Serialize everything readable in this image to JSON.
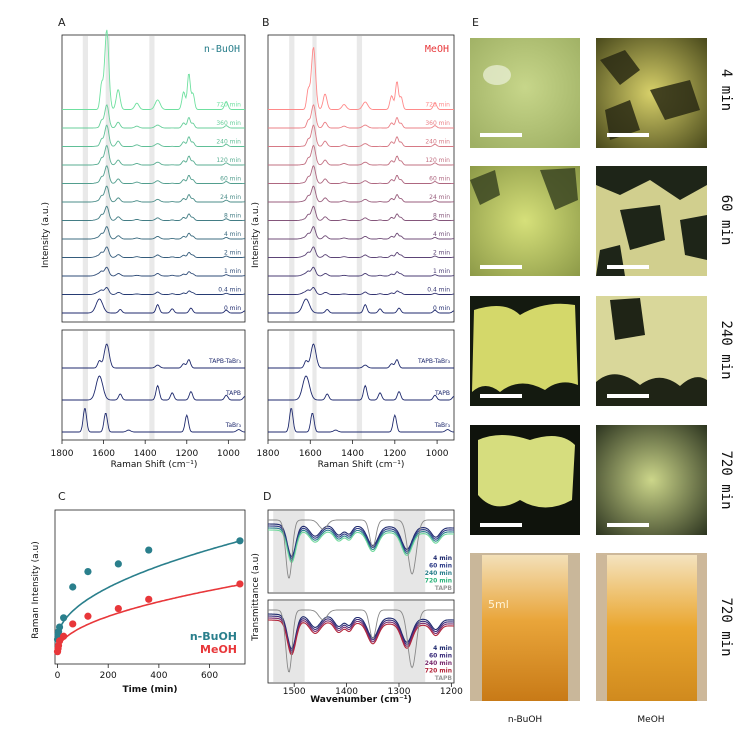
{
  "panels": {
    "a": "A",
    "b": "B",
    "c": "C",
    "d": "D",
    "e": "E"
  },
  "colors": {
    "nbuoh": "#2a7f8c",
    "meoh": "#e8373a",
    "ref": "#1f2a6e",
    "shade": "#e6e6e6"
  },
  "raman": {
    "xlabel": "Raman Shift (cm⁻¹)",
    "ylabel": "Intensity (a.u.)",
    "ticks": [
      "1800",
      "1600",
      "1400",
      "1200",
      "1000"
    ],
    "times": [
      "720 min",
      "360 min",
      "240 min",
      "120 min",
      "60 min",
      "24 min",
      "8 min",
      "4 min",
      "2 min",
      "1 min",
      "0.4 min",
      "0 min"
    ],
    "refs": [
      "TAPB-TaBr₃",
      "TAPB",
      "TaBr₃"
    ],
    "a_title": "n-BuOH",
    "b_title": "MeOH"
  },
  "chart_data": [
    {
      "type": "scatter",
      "panel": "C",
      "xlabel": "Time (min)",
      "ylabel": "Raman Intensity (a.u)",
      "xticks": [
        "0",
        "200",
        "400",
        "600"
      ],
      "xlim": [
        -10,
        740
      ],
      "series": [
        {
          "name": "n-BuOH",
          "x": [
            0,
            2,
            4,
            8,
            24,
            60,
            120,
            240,
            360,
            720
          ],
          "y": [
            0.16,
            0.19,
            0.21,
            0.24,
            0.3,
            0.5,
            0.6,
            0.65,
            0.74,
            0.8
          ]
        },
        {
          "name": "MeOH",
          "x": [
            0,
            2,
            4,
            8,
            24,
            60,
            120,
            240,
            360,
            720
          ],
          "y": [
            0.08,
            0.1,
            0.12,
            0.15,
            0.18,
            0.26,
            0.31,
            0.36,
            0.42,
            0.52
          ]
        }
      ]
    },
    {
      "type": "line",
      "panel": "D",
      "xlabel": "Wavenumber (cm⁻¹)",
      "ylabel": "Transmittance (a.u)",
      "xticks": [
        "1500",
        "1400",
        "1300",
        "1200"
      ],
      "top_legend": [
        "4 min",
        "60 min",
        "240 min",
        "720 min",
        "TAPB"
      ],
      "bottom_legend": [
        "4 min",
        "60 min",
        "240 min",
        "720 min",
        "TAPB"
      ]
    }
  ],
  "micro": {
    "times": [
      "4 min",
      "60 min",
      "240 min",
      "720 min",
      "720 min"
    ],
    "col_labels": [
      "n-BuOH",
      "MeOH"
    ],
    "vial_mark": "5ml"
  }
}
